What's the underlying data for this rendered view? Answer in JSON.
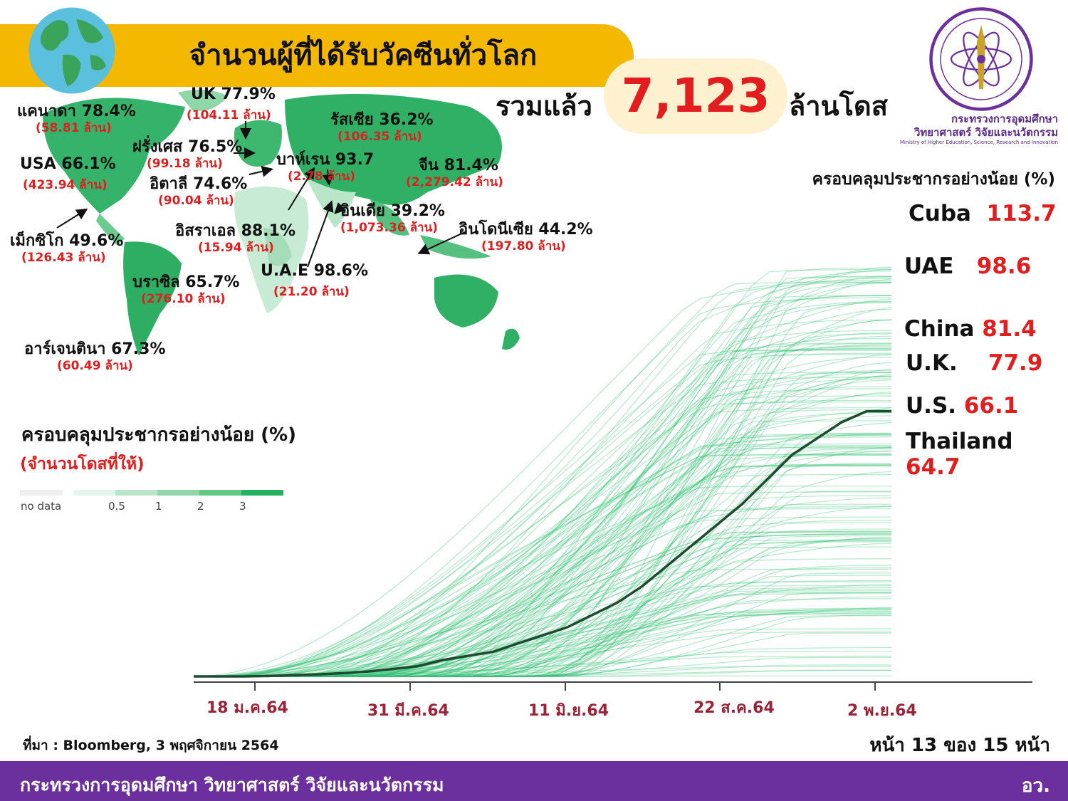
{
  "header": {
    "title": "จำนวนผู้ที่ได้รับวัคซีนทั่วโลก",
    "total_prefix": "รวมแล้ว",
    "total_value": "7,123",
    "total_suffix": "ล้านโดส"
  },
  "ministry": {
    "name_th": "กระทรวงการอุดมศึกษา\nวิทยาศาสตร์ วิจัยและนวัตกรรม",
    "name_en": "Ministry of Higher Education, Science, Research and Innovation"
  },
  "map_labels": [
    {
      "country": "แคนาดา 78.4%",
      "doses": "(58.81 ล้าน)"
    },
    {
      "country": "UK 77.9%",
      "doses": "(104.11 ล้าน)"
    },
    {
      "country": "รัสเซีย 36.2%",
      "doses": "(106.35 ล้าน)"
    },
    {
      "country": "ฝรั่งเศส 76.5%",
      "doses": "(99.18 ล้าน)"
    },
    {
      "country": "USA 66.1%",
      "doses": "(423.94 ล้าน)"
    },
    {
      "country": "บาห์เรน 93.7",
      "doses": "(2.78 ล้าน)"
    },
    {
      "country": "จีน 81.4%",
      "doses": "(2,279.42 ล้าน)"
    },
    {
      "country": "อิตาลี 74.6%",
      "doses": "(90.04 ล้าน)"
    },
    {
      "country": "อินเดีย 39.2%",
      "doses": "(1,073.36 ล้าน)"
    },
    {
      "country": "อิสราเอล 88.1%",
      "doses": "(15.94 ล้าน)"
    },
    {
      "country": "อินโดนีเซีย 44.2%",
      "doses": "(197.80 ล้าน)"
    },
    {
      "country": "เม็กซิโก 49.6%",
      "doses": "(126.43 ล้าน)"
    },
    {
      "country": "U.A.E 98.6%",
      "doses": "(21.20 ล้าน)"
    },
    {
      "country": "บราซิล 65.7%",
      "doses": "(276.10 ล้าน)"
    },
    {
      "country": "อาร์เจนตินา 67.3%",
      "doses": "(60.49 ล้าน)"
    }
  ],
  "legend": {
    "title": "ครอบคลุมประชากรอย่างน้อย (%)",
    "subtitle": "(จำนวนโดสที่ให้)",
    "no_data": "no data",
    "ticks": [
      "0.5",
      "1",
      "2",
      "3"
    ],
    "colors": [
      "#eeeeee",
      "#e3f5ea",
      "#b9e6c9",
      "#8fd7a8",
      "#63c788",
      "#23b05f"
    ]
  },
  "chart_data": {
    "type": "line",
    "right_title": "ครอบคลุมประชากรอย่างน้อย (%)",
    "x_ticks": [
      "18 ม.ค.64",
      "31 มี.ค.64",
      "11 มิ.ย.64",
      "22 ส.ค.64",
      "2 พ.ย.64"
    ],
    "ylim": [
      0,
      115
    ],
    "series_color": "#2fbf6f",
    "highlight_color": "#1f4a30",
    "highlight": {
      "name": "Thailand",
      "values": [
        0,
        0,
        0,
        0.1,
        0.3,
        0.5,
        0.8,
        1.2,
        1.8,
        2.5,
        4,
        5,
        6,
        8,
        10,
        12,
        15,
        18,
        22,
        27,
        32,
        37,
        42,
        48,
        54,
        58,
        62,
        64.7,
        64.7
      ]
    },
    "labeled": [
      {
        "name": "Cuba",
        "value": 113.7
      },
      {
        "name": "UAE",
        "value": 98.6
      },
      {
        "name": "China",
        "value": 81.4
      },
      {
        "name": "U.K.",
        "value": 77.9
      },
      {
        "name": "U.S.",
        "value": 66.1
      },
      {
        "name": "Thailand",
        "value": 64.7
      }
    ]
  },
  "footer": {
    "source": "ที่มา : Bloomberg, 3 พฤศจิกายน 2564",
    "page": "หน้า 13 ของ 15 หน้า",
    "ministry": "กระทรวงการอุดมศึกษา วิทยาศาสตร์ วิจัยและนวัตกรรม",
    "abbr": "อว."
  }
}
